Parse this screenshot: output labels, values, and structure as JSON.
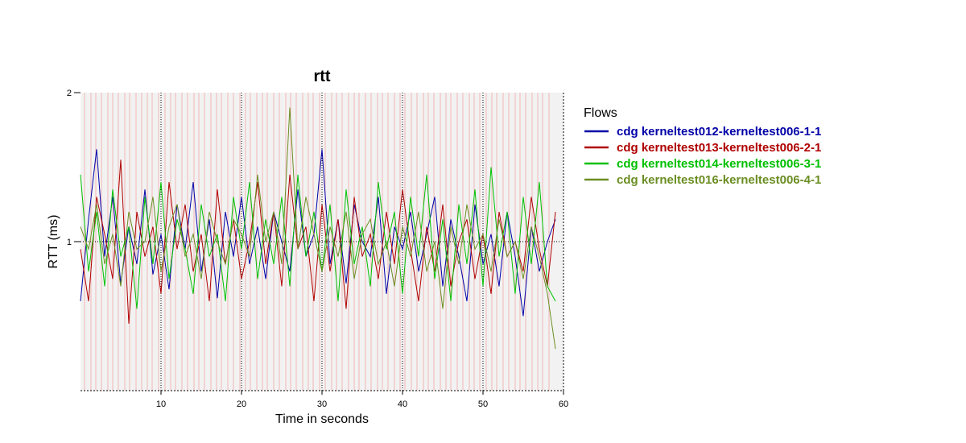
{
  "chart_data": {
    "type": "line",
    "title": "rtt",
    "xlabel": "Time in seconds",
    "ylabel": "RTT (ms)",
    "xlim": [
      0,
      60
    ],
    "ylim": [
      0,
      2
    ],
    "x_ticks": [
      10,
      20,
      30,
      40,
      50,
      60
    ],
    "y_ticks": [
      1,
      2
    ],
    "grid": {
      "vertical_dotted": [
        10,
        20,
        30,
        40,
        50
      ],
      "horizontal_dotted": [
        1
      ]
    },
    "background": {
      "shaded_region": [
        0,
        60
      ],
      "color": "#f2f2f2",
      "event_marker_color": "#f3b5b5"
    },
    "legend": {
      "title": "Flows",
      "placement": "right"
    },
    "series": [
      {
        "name": "cdg kerneltest012-kerneltest006-1-1",
        "color": "#0000a8",
        "x": [
          0,
          1,
          2,
          3,
          4,
          5,
          6,
          7,
          8,
          9,
          10,
          11,
          12,
          13,
          14,
          15,
          16,
          17,
          18,
          19,
          20,
          21,
          22,
          23,
          24,
          25,
          26,
          27,
          28,
          29,
          30,
          31,
          32,
          33,
          34,
          35,
          36,
          37,
          38,
          39,
          40,
          41,
          42,
          43,
          44,
          45,
          46,
          47,
          48,
          49,
          50,
          51,
          52,
          53,
          54,
          55,
          56,
          57,
          58,
          59
        ],
        "y": [
          0.6,
          1.15,
          1.62,
          0.9,
          1.3,
          0.72,
          1.1,
          0.85,
          1.35,
          0.78,
          1.05,
          0.68,
          1.25,
          0.95,
          1.4,
          0.8,
          1.15,
          0.62,
          1.2,
          0.9,
          1.3,
          0.85,
          1.1,
          0.75,
          1.2,
          1.0,
          0.8,
          1.35,
          0.9,
          1.05,
          1.62,
          0.85,
          1.15,
          0.72,
          1.25,
          1.0,
          0.9,
          1.3,
          0.65,
          1.1,
          0.95,
          1.2,
          0.8,
          1.05,
          1.3,
          0.7,
          1.15,
          0.9,
          0.6,
          1.25,
          0.85,
          1.05,
          0.7,
          1.2,
          0.9,
          0.5,
          1.1,
          0.8,
          1.0,
          1.15
        ]
      },
      {
        "name": "cdg kerneltest013-kerneltest006-2-1",
        "color": "#b00000",
        "x": [
          0,
          1,
          2,
          3,
          4,
          5,
          6,
          7,
          8,
          9,
          10,
          11,
          12,
          13,
          14,
          15,
          16,
          17,
          18,
          19,
          20,
          21,
          22,
          23,
          24,
          25,
          26,
          27,
          28,
          29,
          30,
          31,
          32,
          33,
          34,
          35,
          36,
          37,
          38,
          39,
          40,
          41,
          42,
          43,
          44,
          45,
          46,
          47,
          48,
          49,
          50,
          51,
          52,
          53,
          54,
          55,
          56,
          57,
          58,
          59
        ],
        "y": [
          0.95,
          0.6,
          1.3,
          1.05,
          0.75,
          1.55,
          0.45,
          1.2,
          0.9,
          1.1,
          0.65,
          1.4,
          0.95,
          1.25,
          0.8,
          1.05,
          0.6,
          1.35,
          0.85,
          1.15,
          0.75,
          1.0,
          1.4,
          0.85,
          1.2,
          0.7,
          1.45,
          0.95,
          1.1,
          0.6,
          1.25,
          0.8,
          1.15,
          0.55,
          1.3,
          0.9,
          1.05,
          0.75,
          1.2,
          0.85,
          1.35,
          0.95,
          0.6,
          1.1,
          0.8,
          1.25,
          0.7,
          1.0,
          1.15,
          0.75,
          1.05,
          0.65,
          1.2,
          0.9,
          1.0,
          0.8,
          1.3,
          0.95,
          0.7,
          1.2
        ]
      },
      {
        "name": "cdg kerneltest014-kerneltest006-3-1",
        "color": "#00c000",
        "x": [
          0,
          1,
          2,
          3,
          4,
          5,
          6,
          7,
          8,
          9,
          10,
          11,
          12,
          13,
          14,
          15,
          16,
          17,
          18,
          19,
          20,
          21,
          22,
          23,
          24,
          25,
          26,
          27,
          28,
          29,
          30,
          31,
          32,
          33,
          34,
          35,
          36,
          37,
          38,
          39,
          40,
          41,
          42,
          43,
          44,
          45,
          46,
          47,
          48,
          49,
          50,
          51,
          52,
          53,
          54,
          55,
          56,
          57,
          58,
          59
        ],
        "y": [
          1.45,
          0.8,
          1.2,
          0.7,
          1.35,
          0.9,
          1.1,
          0.55,
          1.3,
          0.85,
          1.4,
          0.75,
          1.15,
          0.95,
          0.65,
          1.25,
          0.9,
          1.05,
          0.6,
          1.3,
          0.95,
          1.4,
          0.75,
          1.15,
          0.85,
          1.3,
          0.7,
          1.45,
          0.9,
          1.2,
          0.8,
          1.25,
          0.6,
          1.35,
          0.85,
          1.1,
          0.7,
          1.4,
          0.95,
          1.2,
          0.65,
          1.3,
          0.9,
          1.45,
          0.75,
          1.15,
          0.6,
          1.25,
          0.85,
          1.35,
          0.7,
          1.5,
          0.9,
          1.2,
          0.65,
          1.3,
          0.85,
          1.4,
          0.7,
          0.6
        ]
      },
      {
        "name": "cdg kerneltest016-kerneltest006-4-1",
        "color": "#6b8e23",
        "x": [
          0,
          1,
          2,
          3,
          4,
          5,
          6,
          7,
          8,
          9,
          10,
          11,
          12,
          13,
          14,
          15,
          16,
          17,
          18,
          19,
          20,
          21,
          22,
          23,
          24,
          25,
          26,
          27,
          28,
          29,
          30,
          31,
          32,
          33,
          34,
          35,
          36,
          37,
          38,
          39,
          40,
          41,
          42,
          43,
          44,
          45,
          46,
          47,
          48,
          49,
          50,
          51,
          52,
          53,
          54,
          55,
          56,
          57,
          58,
          59
        ],
        "y": [
          1.1,
          0.95,
          1.25,
          0.85,
          1.05,
          0.7,
          1.2,
          0.95,
          1.0,
          1.3,
          0.8,
          1.1,
          1.25,
          0.9,
          1.05,
          0.75,
          1.2,
          1.0,
          0.85,
          1.15,
          1.05,
          0.9,
          1.45,
          1.0,
          1.2,
          0.85,
          1.9,
          0.95,
          1.3,
          1.05,
          0.8,
          1.1,
          0.9,
          1.2,
          0.75,
          1.05,
          1.15,
          0.85,
          1.0,
          0.7,
          1.1,
          0.9,
          1.2,
          0.8,
          1.0,
          0.55,
          1.1,
          0.85,
          1.25,
          0.95,
          1.05,
          0.8,
          1.15,
          0.9,
          1.0,
          0.75,
          1.1,
          0.9,
          0.65,
          0.28
        ]
      }
    ],
    "event_times": [
      0.5,
      1.3,
      1.9,
      2.6,
      3.4,
      4.0,
      4.7,
      5.5,
      6.1,
      6.9,
      7.6,
      8.3,
      8.9,
      9.7,
      10.5,
      11.2,
      11.8,
      12.6,
      13.3,
      14.1,
      14.7,
      15.4,
      16.2,
      16.9,
      17.5,
      18.3,
      19.0,
      19.8,
      20.5,
      21.1,
      21.9,
      22.6,
      23.2,
      24.0,
      24.7,
      25.5,
      26.1,
      26.8,
      27.6,
      28.3,
      28.9,
      29.7,
      30.4,
      31.2,
      31.8,
      32.5,
      33.3,
      34.0,
      34.6,
      35.4,
      36.1,
      36.9,
      37.5,
      38.2,
      39.0,
      39.7,
      40.3,
      41.1,
      41.8,
      42.6,
      43.2,
      43.9,
      44.7,
      45.4,
      46.0,
      46.8,
      47.5,
      48.3,
      48.9,
      49.6,
      50.4,
      51.1,
      51.7,
      52.5,
      53.2,
      54.0,
      54.6,
      55.3,
      56.1,
      56.8,
      57.4,
      58.2
    ]
  }
}
